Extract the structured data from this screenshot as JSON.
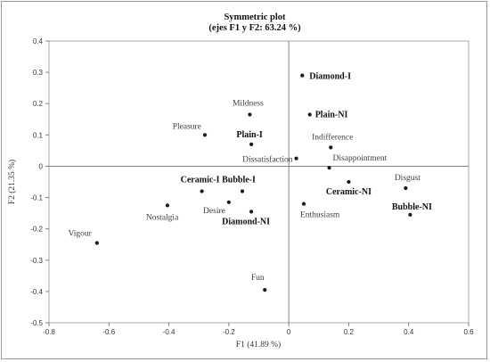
{
  "chart_data": {
    "type": "scatter",
    "title": "Symmetric plot",
    "subtitle": "(ejes F1 y F2: 63.24 %)",
    "xlabel": "F1 (41.89 %)",
    "ylabel": "F2 (21.35 %)",
    "xlim": [
      -0.8,
      0.6
    ],
    "ylim": [
      -0.5,
      0.4
    ],
    "xticks": [
      "-0.8",
      "-0.6",
      "-0.4",
      "-0.2",
      "0",
      "0.2",
      "0.4",
      "0.6"
    ],
    "yticks": [
      "0.4",
      "0.3",
      "0.2",
      "0.1",
      "0",
      "-0.1",
      "-0.2",
      "-0.3",
      "-0.4",
      "-0.5"
    ],
    "grid": false,
    "legend": "none",
    "points": [
      {
        "label": "Diamond-I",
        "x": 0.045,
        "y": 0.29,
        "bold": true
      },
      {
        "label": "Plain-NI",
        "x": 0.07,
        "y": 0.165,
        "bold": true
      },
      {
        "label": "Mildness",
        "x": -0.13,
        "y": 0.165,
        "bold": false
      },
      {
        "label": "Pleasure",
        "x": -0.28,
        "y": 0.1,
        "bold": false
      },
      {
        "label": "Plain-I",
        "x": -0.125,
        "y": 0.07,
        "bold": true
      },
      {
        "label": "Indifference",
        "x": 0.14,
        "y": 0.06,
        "bold": false
      },
      {
        "label": "Dissatisfaction",
        "x": 0.025,
        "y": 0.025,
        "bold": false
      },
      {
        "label": "Disappointment",
        "x": 0.135,
        "y": -0.005,
        "bold": false
      },
      {
        "label": "Disgust",
        "x": 0.39,
        "y": -0.07,
        "bold": false
      },
      {
        "label": "Ceramic-NI",
        "x": 0.2,
        "y": -0.05,
        "bold": true
      },
      {
        "label": "Ceramic-I",
        "x": -0.29,
        "y": -0.08,
        "bold": true
      },
      {
        "label": "Bubble-I",
        "x": -0.155,
        "y": -0.08,
        "bold": true
      },
      {
        "label": "Desire",
        "x": -0.2,
        "y": -0.115,
        "bold": false
      },
      {
        "label": "Diamond-NI",
        "x": -0.125,
        "y": -0.145,
        "bold": true
      },
      {
        "label": "Enthusiasm",
        "x": 0.05,
        "y": -0.12,
        "bold": false
      },
      {
        "label": "Bubble-NI",
        "x": 0.405,
        "y": -0.155,
        "bold": true
      },
      {
        "label": "Nostalgia",
        "x": -0.405,
        "y": -0.125,
        "bold": false
      },
      {
        "label": "Vigour",
        "x": -0.64,
        "y": -0.245,
        "bold": false
      },
      {
        "label": "Fun",
        "x": -0.08,
        "y": -0.395,
        "bold": false
      }
    ],
    "colors": {
      "point": "#1a1a1a",
      "axis": "#808080",
      "text": "#404040",
      "bold_text": "#111111"
    }
  }
}
